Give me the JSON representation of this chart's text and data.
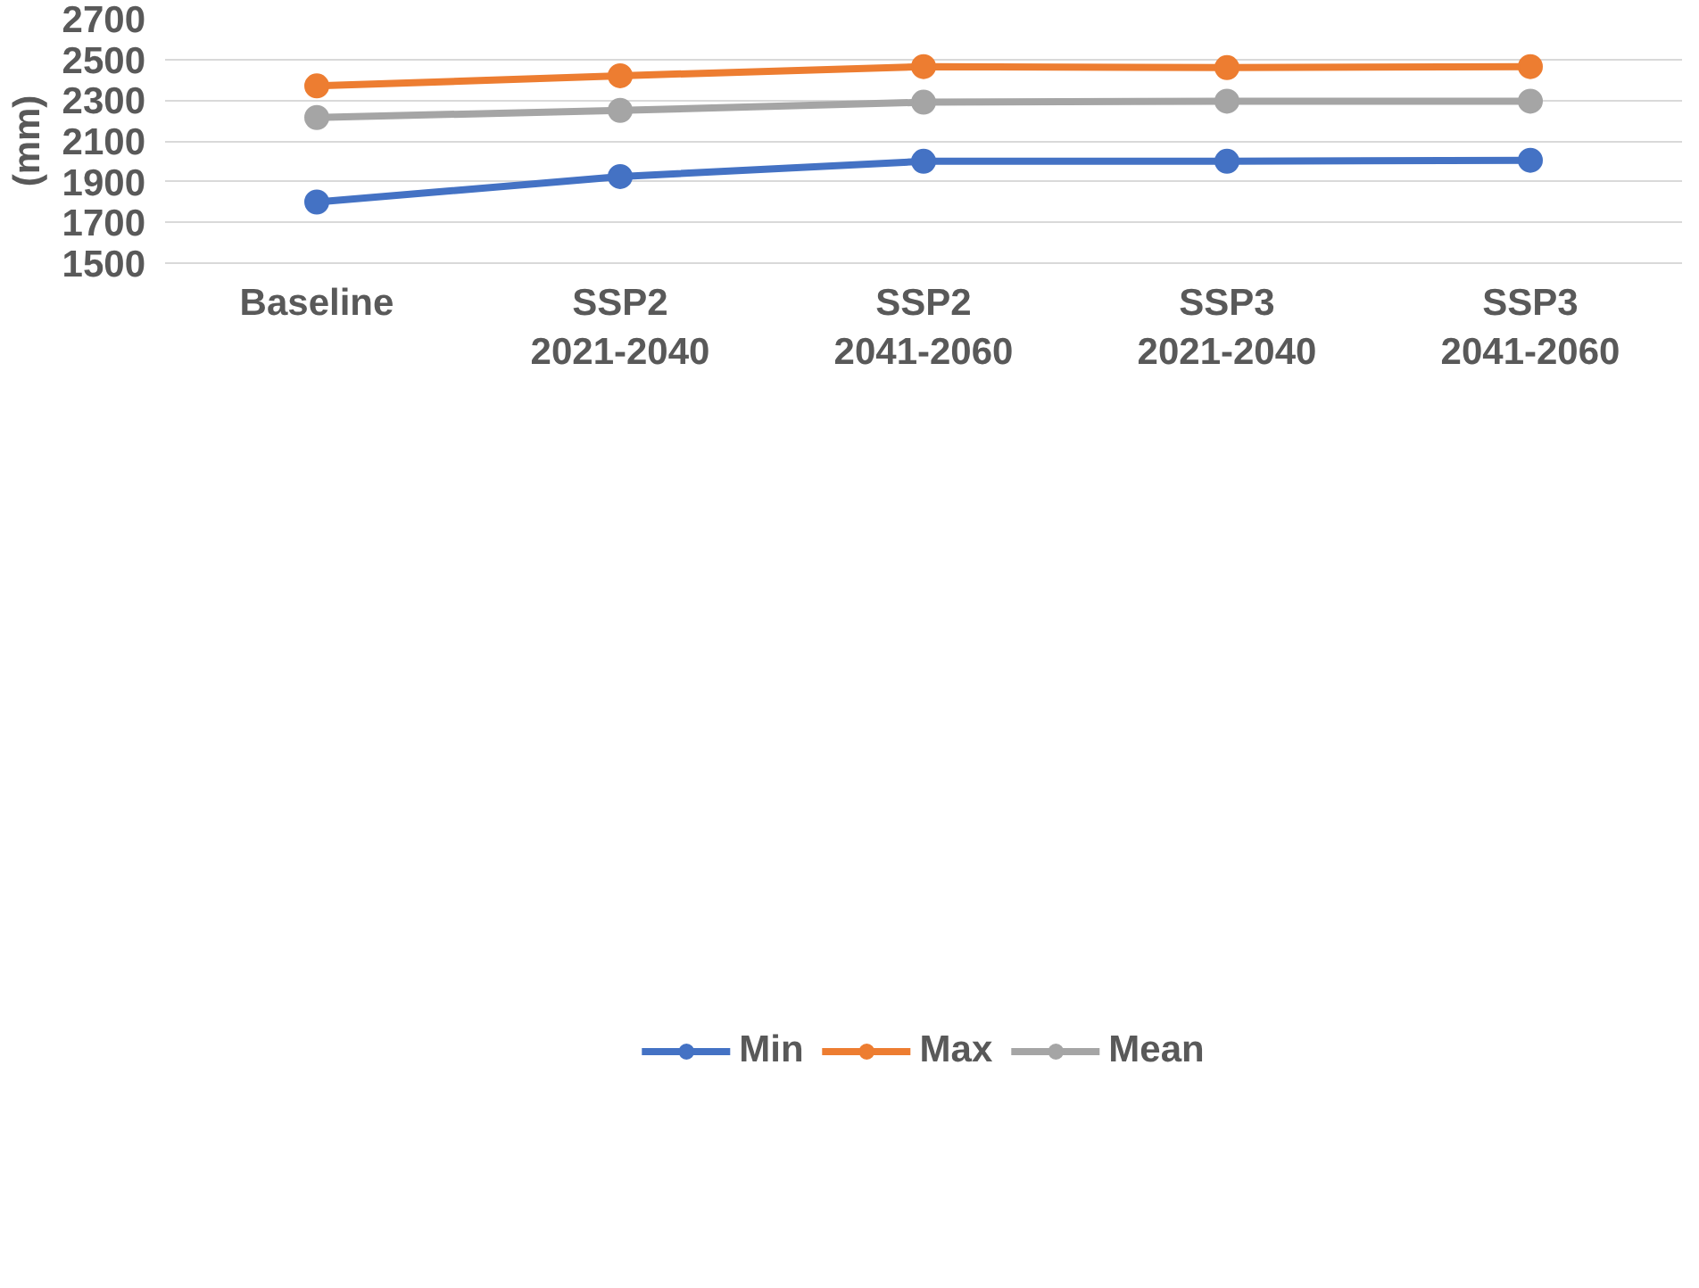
{
  "chart_data": {
    "type": "line",
    "ylabel": "(mm)",
    "categories": [
      "Baseline",
      "SSP2 2021-2040",
      "SSP2 2041-2060",
      "SSP3 2021-2040",
      "SSP3 2041-2060"
    ],
    "series": [
      {
        "name": "Min",
        "color": "#4472c4",
        "values": [
          1800,
          1925,
          2000,
          2000,
          2005
        ]
      },
      {
        "name": "Max",
        "color": "#ed7d31",
        "values": [
          2370,
          2420,
          2465,
          2460,
          2465
        ]
      },
      {
        "name": "Mean",
        "color": "#a5a5a5",
        "values": [
          2215,
          2250,
          2290,
          2295,
          2295
        ]
      }
    ],
    "ylim": [
      1500,
      2700
    ],
    "yticks": [
      1500,
      1700,
      1900,
      2100,
      2300,
      2500,
      2700
    ],
    "grid": "y",
    "legend": "bottom",
    "marker": "circle",
    "line_style": "solid"
  }
}
